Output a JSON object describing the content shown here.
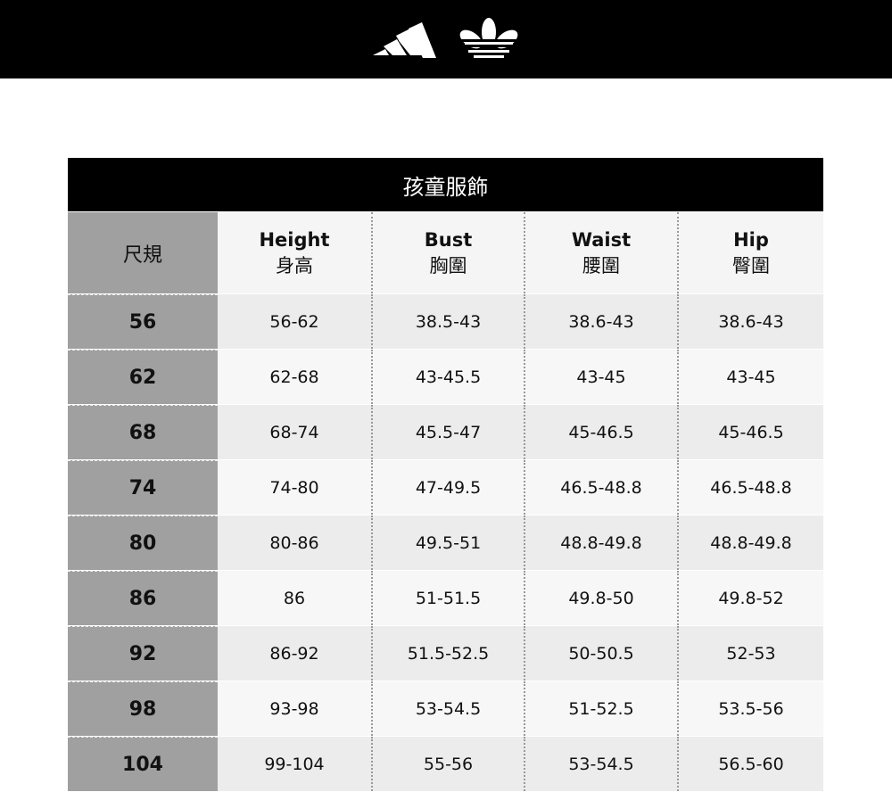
{
  "brand": {
    "logos": [
      "adidas-performance-logo",
      "adidas-originals-trefoil-logo"
    ]
  },
  "table": {
    "title": "孩童服飾",
    "corner": "尺規",
    "columns": [
      {
        "en": "Height",
        "zh": "身高"
      },
      {
        "en": "Bust",
        "zh": "胸圍"
      },
      {
        "en": "Waist",
        "zh": "腰圍"
      },
      {
        "en": "Hip",
        "zh": "臀圍"
      }
    ],
    "rows": [
      {
        "size": "56",
        "values": [
          "56-62",
          "38.5-43",
          "38.6-43",
          "38.6-43"
        ]
      },
      {
        "size": "62",
        "values": [
          "62-68",
          "43-45.5",
          "43-45",
          "43-45"
        ]
      },
      {
        "size": "68",
        "values": [
          "68-74",
          "45.5-47",
          "45-46.5",
          "45-46.5"
        ]
      },
      {
        "size": "74",
        "values": [
          "74-80",
          "47-49.5",
          "46.5-48.8",
          "46.5-48.8"
        ]
      },
      {
        "size": "80",
        "values": [
          "80-86",
          "49.5-51",
          "48.8-49.8",
          "48.8-49.8"
        ]
      },
      {
        "size": "86",
        "values": [
          "86",
          "51-51.5",
          "49.8-50",
          "49.8-52"
        ]
      },
      {
        "size": "92",
        "values": [
          "86-92",
          "51.5-52.5",
          "50-50.5",
          "52-53"
        ]
      },
      {
        "size": "98",
        "values": [
          "93-98",
          "53-54.5",
          "51-52.5",
          "53.5-56"
        ]
      },
      {
        "size": "104",
        "values": [
          "99-104",
          "55-56",
          "53-54.5",
          "56.5-60"
        ]
      }
    ]
  }
}
